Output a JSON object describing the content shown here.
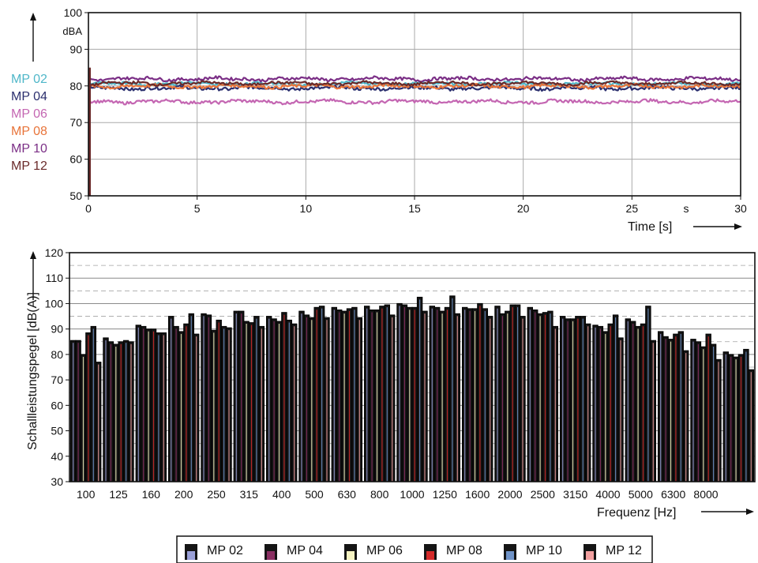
{
  "chart_data": [
    {
      "type": "line",
      "title": "",
      "xlabel": "Time [s]",
      "xunit_mark": "s",
      "ylabel_unit": "dBA",
      "xlim": [
        0,
        30
      ],
      "ylim": [
        50,
        100
      ],
      "xticks": [
        "0",
        "5",
        "10",
        "15",
        "20",
        "25",
        "30"
      ],
      "yticks": [
        "50",
        "60",
        "70",
        "80",
        "90",
        "100"
      ],
      "grid": true,
      "legend_position": "left",
      "series": [
        {
          "name": "MP 02",
          "color": "#4fb7c9",
          "level": 80.6,
          "jitter": 0.35
        },
        {
          "name": "MP 04",
          "color": "#2b2f6e",
          "level": 79.4,
          "jitter": 0.45
        },
        {
          "name": "MP 06",
          "color": "#c466b2",
          "level": 75.7,
          "jitter": 0.4
        },
        {
          "name": "MP 08",
          "color": "#e8743a",
          "level": 79.9,
          "jitter": 0.4
        },
        {
          "name": "MP 10",
          "color": "#7b2f86",
          "level": 81.9,
          "jitter": 0.4
        },
        {
          "name": "MP 12",
          "color": "#6a2a2a",
          "level": 80.7,
          "jitter": 0.35
        }
      ],
      "start_spike": {
        "from": 50,
        "to": 85
      }
    },
    {
      "type": "bar",
      "title": "",
      "xlabel": "Frequenz [Hz]",
      "ylabel": "Schallleistungspegel [dB(A)]",
      "ylim": [
        30,
        120
      ],
      "yticks": [
        "30",
        "40",
        "50",
        "60",
        "70",
        "80",
        "90",
        "100",
        "110",
        "120"
      ],
      "grid": true,
      "legend_position": "bottom",
      "categories": [
        "100",
        "125",
        "160",
        "200",
        "250",
        "315",
        "400",
        "500",
        "630",
        "800",
        "1000",
        "1250",
        "1600",
        "2000",
        "2500",
        "3150",
        "4000",
        "5000",
        "6300",
        "8000",
        ""
      ],
      "series": [
        {
          "name": "MP 02",
          "color": "#9aa0d8",
          "values": [
            85.5,
            86.5,
            91.5,
            95,
            96,
            97,
            95,
            97,
            98.5,
            99,
            100,
            99,
            98.5,
            99,
            98.5,
            95,
            91.5,
            94,
            89,
            86,
            81
          ]
        },
        {
          "name": "MP 04",
          "color": "#8a2f62",
          "values": [
            85.5,
            85,
            91,
            91,
            95.5,
            97,
            94,
            95.5,
            97.5,
            97.5,
            99.5,
            98.5,
            98,
            96,
            97.5,
            94,
            91,
            93,
            87,
            85,
            80
          ]
        },
        {
          "name": "MP 06",
          "color": "#f6f3c2",
          "values": [
            80,
            84,
            90,
            89,
            89.5,
            93,
            93,
            94.5,
            97,
            97.5,
            98.5,
            97,
            98,
            97,
            96,
            94,
            89,
            91,
            86,
            83,
            79
          ]
        },
        {
          "name": "MP 08",
          "color": "#d42a2a",
          "values": [
            88.5,
            85,
            90,
            92,
            93.5,
            92.5,
            96.5,
            98.5,
            98,
            99,
            98.5,
            98.5,
            100,
            99.5,
            96.5,
            95,
            92,
            92,
            88,
            88,
            80
          ]
        },
        {
          "name": "MP 10",
          "color": "#6f93c8",
          "values": [
            91,
            85.5,
            88.5,
            96,
            91,
            95,
            93.5,
            99,
            98.5,
            99.5,
            102.5,
            103,
            98,
            99.5,
            97,
            95,
            95.5,
            99,
            89,
            84,
            82
          ]
        },
        {
          "name": "MP 12",
          "color": "#f2a0a0",
          "values": [
            77,
            85,
            88.5,
            88,
            90.5,
            91,
            92,
            94.5,
            94.5,
            95.5,
            97,
            96,
            95,
            95,
            91,
            92,
            86.5,
            85.5,
            81.5,
            78,
            74
          ]
        }
      ]
    }
  ]
}
